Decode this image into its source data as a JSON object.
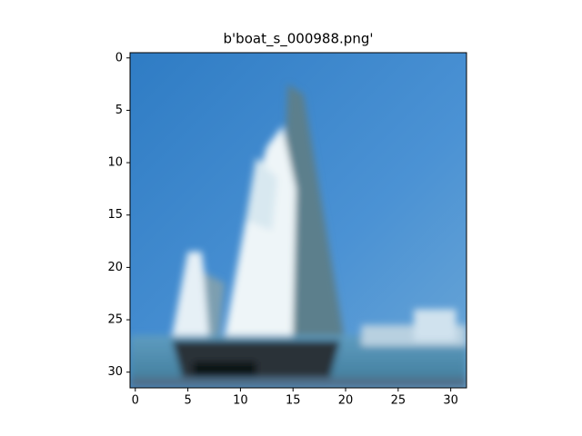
{
  "chart_data": {
    "type": "image",
    "title": "b'boat_s_000988.png'",
    "xlim": [
      -0.5,
      31.5
    ],
    "ylim": [
      31.5,
      -0.5
    ],
    "xticks": [
      0,
      5,
      10,
      15,
      20,
      25,
      30
    ],
    "yticks": [
      0,
      5,
      10,
      15,
      20,
      25,
      30
    ]
  }
}
